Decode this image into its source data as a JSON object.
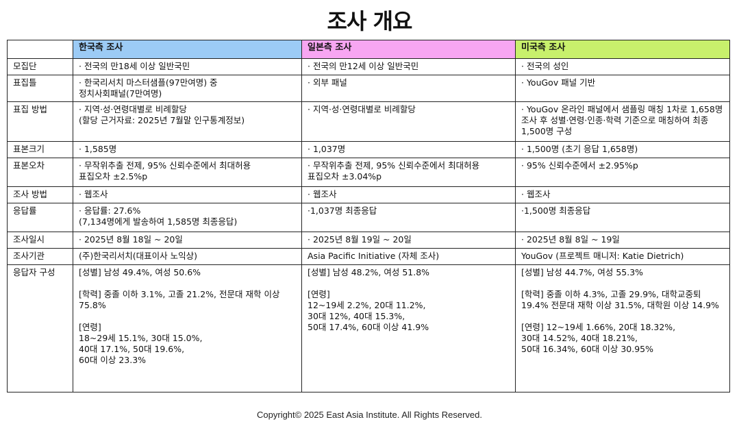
{
  "title": "조사 개요",
  "columns": [
    {
      "label": "",
      "color": "#ffffff"
    },
    {
      "label": "한국측 조사",
      "color": "#9ccbf5"
    },
    {
      "label": "일본측 조사",
      "color": "#f7a6f2"
    },
    {
      "label": "미국측 조사",
      "color": "#c8f06c"
    }
  ],
  "rows": [
    {
      "label": "모집단",
      "cells": [
        "· 전국의 만18세 이상 일반국민",
        "· 전국의 만12세 이상 일반국민",
        "· 전국의 성인"
      ]
    },
    {
      "label": "표집틀",
      "cells": [
        "· 한국리서치 마스터샘플(97만여명) 중\n정치사회패널(7만여명)",
        "· 외부 패널",
        "· YouGov 패널 기반"
      ]
    },
    {
      "label": "표집 방법",
      "cells": [
        "· 지역·성·연령대별로 비례할당\n (할당 근거자료: 2025년 7월말 인구통계정보)",
        "· 지역·성·연령대별로 비례할당",
        "· YouGov 온라인 패널에서 샘플링 매칭 1차로 1,658명 조사 후 성별·연령·인종·학력 기준으로 매칭하여  최종 1,500명 구성"
      ]
    },
    {
      "label": "표본크기",
      "cells": [
        "· 1,585명",
        "· 1,037명",
        "· 1,500명 (초기 응답 1,658명)"
      ]
    },
    {
      "label": "표본오차",
      "cells": [
        "· 무작위추출 전제, 95% 신뢰수준에서 최대허용\n표집오차 ±2.5%p",
        "· 무작위추출 전제, 95% 신뢰수준에서 최대허용\n표집오차 ±3.04%p",
        "· 95% 신뢰수준에서 ±2.95%p"
      ]
    },
    {
      "label": "조사 방법",
      "cells": [
        "· 웹조사",
        "· 웹조사",
        "· 웹조사"
      ]
    },
    {
      "label": "응답률",
      "cells": [
        "· 응답률: 27.6%\n(7,134명에게 발송하여 1,585명 최종응답)",
        "·1,037명 최종응답",
        "·1,500명 최종응답"
      ]
    },
    {
      "label": "조사일시",
      "cells": [
        "· 2025년 8월 18일 ~ 20일",
        "· 2025년 8월 19일 ~ 20일",
        "· 2025년 8월 8일 ~ 19일"
      ]
    },
    {
      "label": "조사기관",
      "cells": [
        "(주)한국리서치(대표이사 노익상)",
        "Asia Pacific Initiative (자체 조사)",
        "YouGov (프로젝트 매니저: Katie Dietrich)"
      ]
    },
    {
      "label": "응답자 구성",
      "cells": [
        "[성별] 남성 49.4%, 여성 50.6%\n\n[학력] 중졸 이하 3.1%, 고졸 21.2%, 전문대 재학 이상 75.8%\n\n[연령]\n18~29세 15.1%, 30대 15.0%,\n40대 17.1%, 50대 19.6%,\n60대 이상 23.3%",
        "[성별] 남성 48.2%, 여성 51.8%\n\n[연령]\n12~19세 2.2%, 20대 11.2%,\n30대 12%, 40대 15.3%,\n50대 17.4%, 60대 이상 41.9%",
        "[성별] 남성 44.7%, 여성 55.3%\n\n[학력] 중졸 이하 4.3%, 고졸 29.9%, 대학교중퇴 19.4% 전문대 재학 이상 31.5%, 대학원 이상 14.9%\n\n[연령] 12~19세 1.66%, 20대 18.32%,\n30대 14.52%, 40대 18.21%,\n50대 16.34%, 60대 이상 30.95%"
      ]
    }
  ],
  "footer": "Copyright© 2025 East Asia Institute. All Rights Reserved."
}
